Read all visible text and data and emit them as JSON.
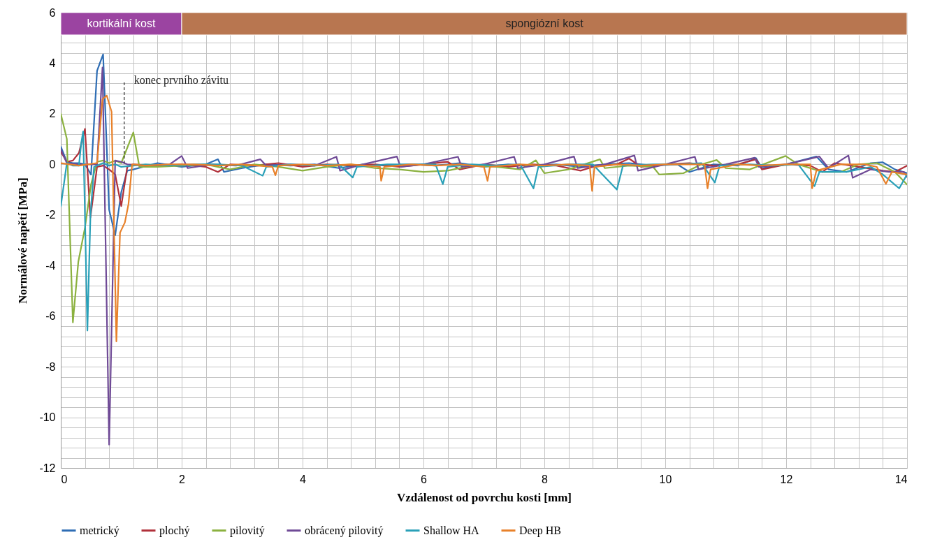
{
  "chart_data": {
    "type": "line",
    "xlabel": "Vzdálenost  od povrchu kosti [mm]",
    "ylabel": "Normálové  napětí [MPa]",
    "xlim": [
      0,
      14
    ],
    "ylim": [
      -12,
      6
    ],
    "xticks": [
      0,
      2,
      4,
      6,
      8,
      10,
      12,
      14,
      {
        "value": 0.4,
        "label": null
      },
      {
        "value": 0.8,
        "label": null
      },
      {
        "value": 1.2,
        "label": null
      },
      {
        "value": 1.6,
        "label": null
      },
      {
        "value": 2.4,
        "label": null
      },
      {
        "value": 2.8,
        "label": null
      },
      {
        "value": 3.2,
        "label": null
      },
      {
        "value": 3.6,
        "label": null
      },
      {
        "value": 4.4,
        "label": null
      },
      {
        "value": 4.8,
        "label": null
      },
      {
        "value": 5.2,
        "label": null
      },
      {
        "value": 5.6,
        "label": null
      },
      {
        "value": 6.4,
        "label": null
      },
      {
        "value": 6.8,
        "label": null
      },
      {
        "value": 7.2,
        "label": null
      },
      {
        "value": 7.6,
        "label": null
      },
      {
        "value": 8.4,
        "label": null
      },
      {
        "value": 8.8,
        "label": null
      },
      {
        "value": 9.2,
        "label": null
      },
      {
        "value": 9.6,
        "label": null
      },
      {
        "value": 10.4,
        "label": null
      },
      {
        "value": 10.8,
        "label": null
      },
      {
        "value": 11.2,
        "label": null
      },
      {
        "value": 11.6,
        "label": null
      },
      {
        "value": 12.4,
        "label": null
      },
      {
        "value": 12.8,
        "label": null
      },
      {
        "value": 13.2,
        "label": null
      },
      {
        "value": 13.6,
        "label": null
      }
    ],
    "yticks": [
      -12,
      -10,
      -8,
      -6,
      -4,
      -2,
      0,
      2,
      4,
      6,
      {
        "value": -11.6,
        "label": null
      },
      {
        "value": -11.2,
        "label": null
      },
      {
        "value": -10.8,
        "label": null
      },
      {
        "value": -10.4,
        "label": null
      },
      {
        "value": -9.6,
        "label": null
      },
      {
        "value": -9.2,
        "label": null
      },
      {
        "value": -8.8,
        "label": null
      },
      {
        "value": -8.4,
        "label": null
      },
      {
        "value": -7.6,
        "label": null
      },
      {
        "value": -7.2,
        "label": null
      },
      {
        "value": -6.8,
        "label": null
      },
      {
        "value": -6.4,
        "label": null
      },
      {
        "value": -5.6,
        "label": null
      },
      {
        "value": -5.2,
        "label": null
      },
      {
        "value": -4.8,
        "label": null
      },
      {
        "value": -4.4,
        "label": null
      },
      {
        "value": -3.6,
        "label": null
      },
      {
        "value": -3.2,
        "label": null
      },
      {
        "value": -2.8,
        "label": null
      },
      {
        "value": -2.4,
        "label": null
      },
      {
        "value": -1.6,
        "label": null
      },
      {
        "value": -1.2,
        "label": null
      },
      {
        "value": -0.8,
        "label": null
      },
      {
        "value": -0.4,
        "label": null
      },
      {
        "value": 0.4,
        "label": null
      },
      {
        "value": 0.8,
        "label": null
      },
      {
        "value": 1.2,
        "label": null
      },
      {
        "value": 1.6,
        "label": null
      },
      {
        "value": 2.4,
        "label": null
      },
      {
        "value": 2.8,
        "label": null
      },
      {
        "value": 3.2,
        "label": null
      },
      {
        "value": 3.6,
        "label": null
      },
      {
        "value": 4.4,
        "label": null
      },
      {
        "value": 4.8,
        "label": null
      }
    ],
    "grid": true,
    "legend": "bottom",
    "bands": [
      {
        "axis": "x",
        "from": 0,
        "to": 2,
        "label": "kortikální kost",
        "color": "#9b44a1"
      },
      {
        "axis": "x",
        "from": 2,
        "to": 14,
        "label": "spongiózní kost",
        "color": "#b87650"
      }
    ],
    "ref_lines": [
      {
        "axis": "x",
        "value": 1.05,
        "label": "konec prvního  závitu",
        "line_style": "dashed",
        "color": "#000000"
      }
    ],
    "series": [
      {
        "name": "metrický",
        "color": "#2e6db4",
        "x": [
          0,
          0.1,
          0.2,
          0.3,
          0.4,
          0.5,
          0.6,
          0.7,
          0.8,
          0.9,
          1.0,
          1.1,
          1.2,
          1.6,
          2.0,
          2.4,
          2.6,
          2.7,
          3.0,
          3.4,
          3.8,
          4.2,
          4.6,
          5.0,
          5.4,
          5.8,
          6.2,
          6.6,
          7.0,
          7.4,
          7.8,
          8.2,
          8.6,
          9.0,
          9.4,
          9.8,
          10.2,
          10.4,
          10.8,
          11.2,
          11.5,
          11.6,
          12.0,
          12.5,
          12.7,
          13.0,
          13.4,
          13.6,
          13.8,
          14.0
        ],
        "values": [
          0.7,
          0.1,
          0.05,
          0.05,
          0,
          -0.4,
          3.7,
          4.35,
          -1.8,
          -2.8,
          -1.1,
          -0.25,
          -0.2,
          0.05,
          -0.1,
          0,
          0.2,
          -0.3,
          -0.15,
          0,
          -0.05,
          0,
          -0.15,
          0,
          -0.05,
          0,
          -0.05,
          0.05,
          -0.1,
          0,
          -0.05,
          0,
          -0.1,
          0,
          0.05,
          -0.05,
          0,
          -0.3,
          0,
          -0.05,
          0.25,
          -0.15,
          0,
          0.31,
          -0.2,
          -0.3,
          0.05,
          0.08,
          -0.2,
          -0.35
        ]
      },
      {
        "name": "plochý",
        "color": "#b0303a",
        "x": [
          0,
          0.1,
          0.2,
          0.3,
          0.4,
          0.49,
          0.6,
          0.7,
          0.8,
          0.9,
          1.0,
          1.1,
          1.2,
          1.6,
          2.0,
          2.4,
          2.6,
          2.8,
          3.2,
          3.6,
          4.0,
          4.4,
          4.8,
          5.2,
          5.6,
          6.0,
          6.4,
          6.6,
          7.0,
          7.4,
          7.8,
          8.2,
          8.6,
          8.8,
          9.2,
          9.4,
          9.6,
          10.0,
          10.4,
          10.8,
          11.2,
          11.5,
          11.6,
          12.0,
          12.4,
          12.6,
          12.8,
          13.2,
          13.6,
          13.8,
          14.0
        ],
        "values": [
          0.5,
          0.1,
          0.15,
          0.45,
          1.4,
          -2.1,
          -0.1,
          -0.05,
          -0.2,
          -0.4,
          -1.65,
          -0.1,
          0,
          -0.05,
          0,
          -0.1,
          -0.3,
          0,
          -0.05,
          0.05,
          -0.1,
          0,
          -0.05,
          0,
          -0.1,
          0,
          0.1,
          -0.2,
          0,
          -0.1,
          0,
          -0.05,
          -0.25,
          -0.1,
          0,
          0.23,
          -0.1,
          0,
          0.05,
          -0.05,
          0,
          0.2,
          -0.2,
          0,
          -0.05,
          -0.3,
          0.05,
          -0.1,
          -0.25,
          -0.3,
          -0.05
        ]
      },
      {
        "name": "pilovitý",
        "color": "#8bb13f",
        "x": [
          0,
          0.1,
          0.2,
          0.29,
          0.4,
          0.5,
          0.6,
          0.7,
          0.8,
          0.9,
          1.0,
          1.2,
          1.3,
          1.6,
          2.0,
          2.4,
          2.8,
          3.2,
          3.6,
          4.0,
          4.4,
          4.8,
          5.2,
          5.6,
          6.0,
          6.4,
          6.8,
          7.2,
          7.6,
          7.86,
          8.0,
          8.4,
          8.92,
          9.0,
          9.4,
          9.8,
          9.9,
          10.3,
          10.6,
          10.85,
          11.0,
          11.4,
          11.99,
          12.2,
          12.6,
          12.9,
          13.2,
          13.5,
          13.8,
          14.0
        ],
        "values": [
          2.0,
          1.0,
          -6.25,
          -3.85,
          -2.5,
          -0.8,
          0.1,
          0.15,
          0.05,
          0.15,
          0.05,
          1.26,
          -0.1,
          -0.1,
          -0.05,
          0,
          -0.2,
          0,
          -0.1,
          -0.25,
          -0.1,
          0,
          -0.15,
          -0.2,
          -0.3,
          -0.25,
          -0.05,
          -0.1,
          -0.2,
          0.16,
          -0.35,
          -0.2,
          0.2,
          -0.15,
          -0.05,
          -0.1,
          -0.4,
          -0.35,
          0,
          0.17,
          -0.15,
          -0.2,
          0.33,
          0,
          -0.3,
          -0.3,
          0,
          0.05,
          -0.3,
          -0.8
        ]
      },
      {
        "name": "obrácený pilovitý",
        "color": "#6f4a96",
        "x": [
          0,
          0.1,
          0.3,
          0.5,
          0.6,
          0.69,
          0.8,
          0.9,
          1.0,
          1.1,
          1.4,
          1.8,
          2.0,
          2.1,
          2.5,
          2.9,
          3.3,
          3.4,
          3.8,
          4.2,
          4.56,
          4.62,
          5.0,
          5.56,
          5.62,
          6.0,
          6.57,
          6.63,
          7.0,
          7.5,
          7.56,
          8.0,
          8.49,
          8.55,
          9.0,
          9.49,
          9.55,
          10.0,
          10.49,
          10.55,
          11.0,
          11.48,
          11.55,
          12.0,
          12.55,
          12.7,
          13.03,
          13.1,
          13.4,
          13.7,
          13.95,
          14.0
        ],
        "values": [
          0.6,
          0.05,
          0,
          0,
          0,
          3.83,
          -11.08,
          0.15,
          0.1,
          0,
          -0.05,
          0,
          0.33,
          -0.15,
          0,
          -0.05,
          0.2,
          -0.05,
          0,
          -0.05,
          0.3,
          -0.25,
          0,
          0.31,
          -0.1,
          0,
          0.3,
          -0.1,
          0,
          0.3,
          -0.15,
          0,
          0.31,
          -0.15,
          0,
          0.35,
          -0.25,
          0,
          0.3,
          -0.2,
          0,
          0.26,
          -0.1,
          0,
          0.31,
          -0.15,
          0.35,
          -0.53,
          -0.2,
          -0.3,
          -0.3,
          -0.5
        ]
      },
      {
        "name": "Shallow HA",
        "color": "#2aa0b8",
        "x": [
          0,
          0.1,
          0.2,
          0.3,
          0.34,
          0.37,
          0.44,
          0.49,
          0.55,
          0.7,
          0.8,
          0.9,
          1.0,
          1.4,
          1.8,
          2.2,
          2.6,
          3.0,
          3.34,
          3.4,
          3.8,
          4.2,
          4.6,
          4.83,
          4.9,
          5.4,
          5.8,
          6.2,
          6.32,
          6.4,
          6.8,
          7.2,
          7.6,
          7.82,
          7.9,
          8.4,
          8.8,
          9.2,
          9.3,
          9.8,
          10.2,
          10.6,
          10.82,
          10.9,
          11.4,
          11.8,
          12.2,
          12.47,
          12.55,
          13.0,
          13.4,
          13.6,
          13.87,
          14.0
        ],
        "values": [
          -1.66,
          0.05,
          -0.05,
          -0.05,
          0.87,
          1.3,
          -6.57,
          -2.05,
          -0.1,
          0.05,
          -0.05,
          0,
          -0.1,
          0,
          -0.05,
          0,
          0,
          -0.05,
          -0.45,
          -0.1,
          0,
          -0.05,
          0,
          -0.52,
          -0.1,
          0,
          0,
          0,
          -0.78,
          -0.1,
          0,
          -0.05,
          0,
          -0.95,
          -0.1,
          0,
          0,
          -1.0,
          -0.05,
          0,
          0,
          0.05,
          -0.72,
          -0.05,
          0,
          -0.05,
          0,
          -0.86,
          -0.3,
          -0.3,
          -0.1,
          -0.4,
          -0.95,
          -0.4
        ]
      },
      {
        "name": "Deep HB",
        "color": "#e8812a",
        "x": [
          0,
          0.3,
          0.6,
          0.69,
          0.76,
          0.84,
          0.92,
          0.98,
          1.06,
          1.12,
          1.18,
          1.4,
          1.8,
          2.2,
          2.6,
          3.0,
          3.5,
          3.55,
          3.6,
          4.0,
          4.4,
          4.8,
          5.28,
          5.3,
          5.35,
          5.8,
          6.2,
          6.6,
          7.0,
          7.06,
          7.1,
          7.6,
          8.0,
          8.4,
          8.75,
          8.79,
          8.83,
          9.2,
          9.6,
          10.0,
          10.65,
          10.7,
          10.75,
          11.2,
          11.6,
          12.0,
          12.4,
          12.43,
          12.5,
          12.9,
          13.3,
          13.5,
          13.65,
          13.75,
          14.0
        ],
        "values": [
          0.05,
          -0.05,
          0.05,
          2.57,
          2.72,
          2.08,
          -7.0,
          -2.7,
          -2.3,
          -1.57,
          0,
          -0.05,
          0,
          0,
          -0.05,
          0,
          -0.1,
          -0.43,
          -0.05,
          0,
          -0.05,
          0,
          -0.1,
          -0.65,
          -0.1,
          0,
          -0.05,
          0,
          -0.1,
          -0.65,
          -0.1,
          0,
          -0.05,
          0,
          -0.05,
          -1.05,
          -0.1,
          0,
          -0.05,
          0,
          0,
          -0.95,
          -0.2,
          0,
          -0.05,
          0,
          0,
          -0.95,
          -0.25,
          0,
          0,
          -0.1,
          -0.77,
          -0.3,
          -0.4
        ]
      }
    ]
  }
}
